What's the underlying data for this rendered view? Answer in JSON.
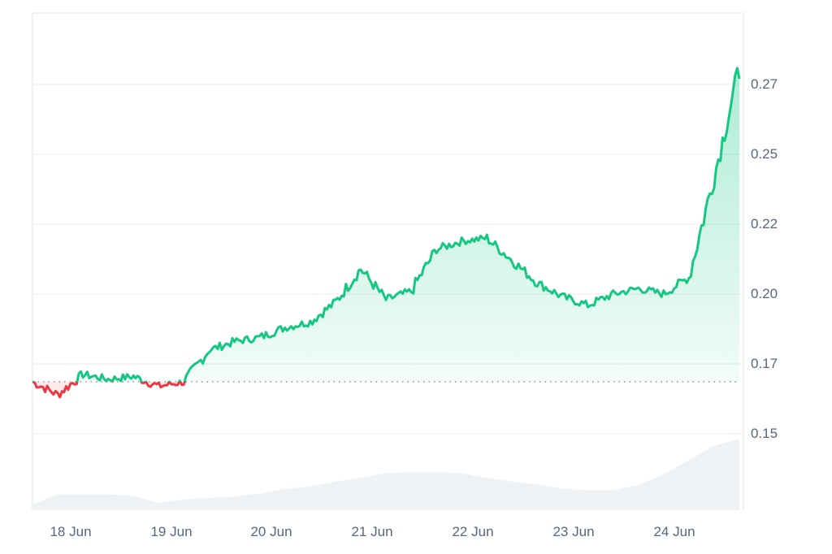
{
  "chart_data": {
    "type": "line",
    "title": "",
    "xlabel": "",
    "ylabel": "",
    "y_ticks": [
      "0.27",
      "0.25",
      "0.22",
      "0.20",
      "0.17",
      "0.15"
    ],
    "y_tick_values": [
      0.275,
      0.25,
      0.225,
      0.2,
      0.175,
      0.15
    ],
    "x_ticks": [
      "18 Jun",
      "19 Jun",
      "20 Jun",
      "21 Jun",
      "22 Jun",
      "23 Jun",
      "24 Jun"
    ],
    "ylim": [
      0.145,
      0.286
    ],
    "baseline": 0.1686,
    "grid": true,
    "legend": "none",
    "colors": {
      "up": "#16c784",
      "down": "#ea3943",
      "volume": "#eff2f5",
      "axis_text": "#58667e",
      "grid": "#eff2f5"
    },
    "series": [
      {
        "name": "Price",
        "x": [
          "17 Jun 18:00",
          "18 Jun 00:00",
          "18 Jun 06:00",
          "18 Jun 12:00",
          "18 Jun 18:00",
          "19 Jun 00:00",
          "19 Jun 06:00",
          "19 Jun 12:00",
          "19 Jun 18:00",
          "20 Jun 00:00",
          "20 Jun 06:00",
          "20 Jun 12:00",
          "20 Jun 18:00",
          "21 Jun 00:00",
          "21 Jun 06:00",
          "21 Jun 12:00",
          "21 Jun 18:00",
          "22 Jun 00:00",
          "22 Jun 06:00",
          "22 Jun 12:00",
          "22 Jun 18:00",
          "23 Jun 00:00",
          "23 Jun 06:00",
          "23 Jun 12:00",
          "23 Jun 18:00",
          "24 Jun 00:00",
          "24 Jun 06:00",
          "24 Jun 12:00",
          "24 Jun 18:00"
        ],
        "values": [
          0.1686,
          0.164,
          0.1712,
          0.1695,
          0.1705,
          0.167,
          0.1686,
          0.18,
          0.183,
          0.1845,
          0.188,
          0.19,
          0.197,
          0.209,
          0.198,
          0.201,
          0.216,
          0.219,
          0.22,
          0.212,
          0.204,
          0.199,
          0.196,
          0.2,
          0.202,
          0.2,
          0.206,
          0.242,
          0.281
        ]
      },
      {
        "name": "Volume",
        "relative_heights": [
          0.08,
          0.22,
          0.22,
          0.22,
          0.2,
          0.1,
          0.15,
          0.17,
          0.19,
          0.23,
          0.3,
          0.33,
          0.4,
          0.45,
          0.52,
          0.53,
          0.53,
          0.52,
          0.45,
          0.4,
          0.36,
          0.3,
          0.28,
          0.28,
          0.35,
          0.5,
          0.7,
          0.9,
          1.0
        ]
      }
    ]
  }
}
